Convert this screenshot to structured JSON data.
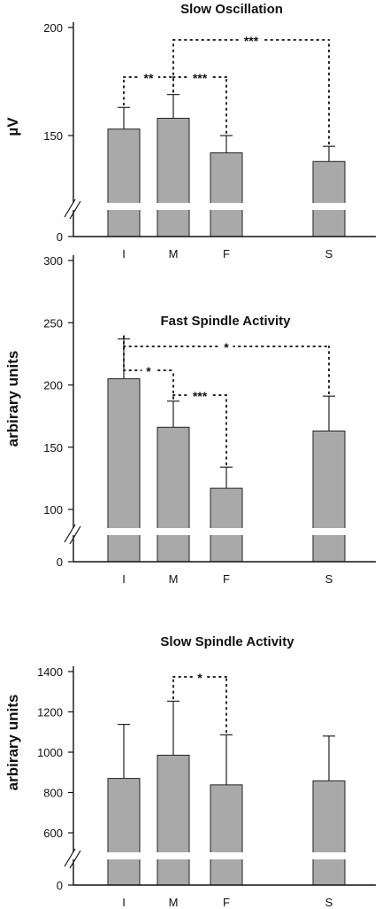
{
  "chart_data": [
    {
      "type": "bar",
      "title": "Slow Oscillation",
      "ylabel": "µV",
      "xlabel": "",
      "categories": [
        "I",
        "M",
        "F",
        "S"
      ],
      "values": [
        153,
        158,
        142,
        138
      ],
      "errors": [
        10,
        11,
        8,
        7
      ],
      "yticks": [
        0,
        150,
        200
      ],
      "ylim": [
        0,
        200
      ],
      "axis_break": true,
      "significance": [
        {
          "from": "I",
          "to": "M",
          "label": "**"
        },
        {
          "from": "M",
          "to": "F",
          "label": "***"
        },
        {
          "from": "M",
          "to": "S",
          "label": "***"
        }
      ]
    },
    {
      "type": "bar",
      "title": "Fast Spindle Activity",
      "ylabel": "arbirary units",
      "xlabel": "",
      "categories": [
        "I",
        "M",
        "F",
        "S"
      ],
      "values": [
        205,
        166,
        117,
        163
      ],
      "errors": [
        32,
        21,
        17,
        28
      ],
      "yticks": [
        0,
        100,
        150,
        200,
        250,
        300
      ],
      "ylim": [
        0,
        300
      ],
      "axis_break": true,
      "significance": [
        {
          "from": "I",
          "to": "M",
          "label": "*"
        },
        {
          "from": "M",
          "to": "F",
          "label": "***"
        },
        {
          "from": "I",
          "to": "S",
          "label": "*"
        }
      ]
    },
    {
      "type": "bar",
      "title": "Slow Spindle Activity",
      "ylabel": "arbirary units",
      "xlabel": "",
      "categories": [
        "I",
        "M",
        "F",
        "S"
      ],
      "values": [
        870,
        985,
        838,
        858
      ],
      "errors": [
        268,
        268,
        248,
        222
      ],
      "yticks": [
        0,
        600,
        800,
        1000,
        1200,
        1400
      ],
      "ylim": [
        0,
        1400
      ],
      "axis_break": true,
      "significance": [
        {
          "from": "M",
          "to": "F",
          "label": "*"
        }
      ]
    }
  ]
}
